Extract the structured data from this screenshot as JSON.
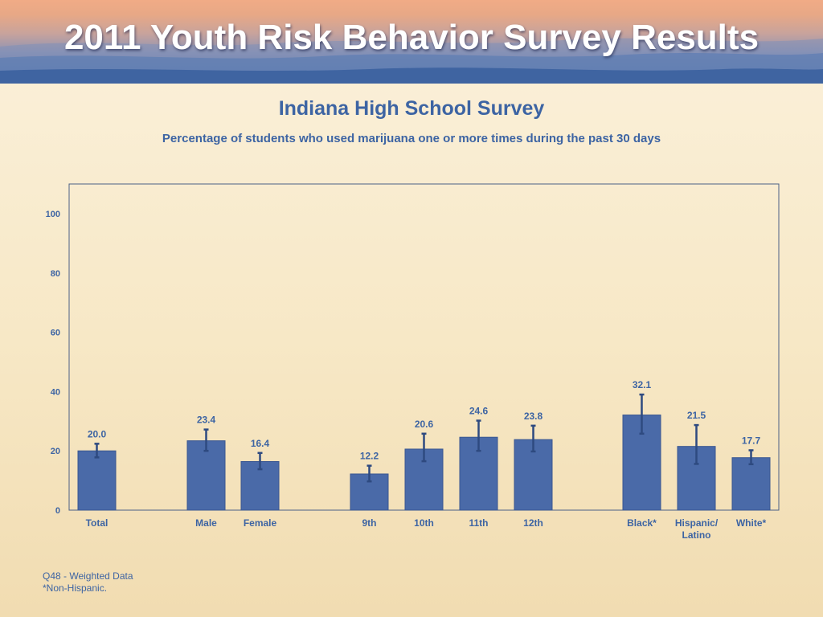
{
  "header": {
    "title": "2011 Youth Risk Behavior Survey Results"
  },
  "footnotes": {
    "line1": "Q48 - Weighted Data",
    "line2": "*Non-Hispanic."
  },
  "colors": {
    "bar": "#4a6aa8",
    "bar_stroke": "#3a5791",
    "text": "#3d64a3",
    "error_bar": "#2e4a80"
  },
  "chart_data": {
    "type": "bar",
    "title": "Indiana High School Survey",
    "subtitle": "Percentage of students who used marijuana one or more times during the past 30 days",
    "ylim": [
      0,
      100
    ],
    "yticks": [
      0,
      20,
      40,
      60,
      80,
      100
    ],
    "grid": false,
    "categories": [
      "Total",
      "Male",
      "Female",
      "9th",
      "10th",
      "11th",
      "12th",
      "Black*",
      "Hispanic/ Latino",
      "White*"
    ],
    "category_lines": [
      [
        "Total"
      ],
      [
        "Male"
      ],
      [
        "Female"
      ],
      [
        "9th"
      ],
      [
        "10th"
      ],
      [
        "11th"
      ],
      [
        "12th"
      ],
      [
        "Black*"
      ],
      [
        "Hispanic/",
        "Latino"
      ],
      [
        "White*"
      ]
    ],
    "values": [
      20.0,
      23.4,
      16.4,
      12.2,
      20.6,
      24.6,
      23.8,
      32.1,
      21.5,
      17.7
    ],
    "value_labels": [
      "20.0",
      "23.4",
      "16.4",
      "12.2",
      "20.6",
      "24.6",
      "23.8",
      "32.1",
      "21.5",
      "17.7"
    ],
    "ci_low": [
      17.8,
      20.0,
      13.8,
      9.7,
      16.5,
      20.0,
      19.8,
      25.8,
      15.6,
      15.5
    ],
    "ci_high": [
      22.4,
      27.2,
      19.3,
      15.0,
      25.8,
      30.2,
      28.5,
      39.0,
      28.7,
      20.2
    ],
    "groups": [
      [
        0
      ],
      [
        1,
        2
      ],
      [
        3,
        4,
        5,
        6
      ],
      [
        7,
        8,
        9
      ]
    ]
  }
}
